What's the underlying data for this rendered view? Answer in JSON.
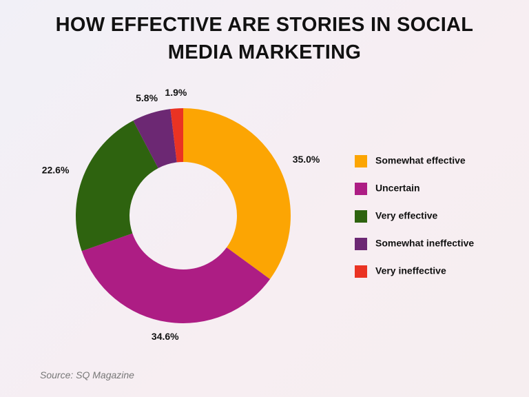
{
  "chart_data": {
    "type": "donut",
    "title": "HOW EFFECTIVE ARE STORIES IN SOCIAL MEDIA MARKETING",
    "categories": [
      "Somewhat effective",
      "Uncertain",
      "Very effective",
      "Somewhat ineffective",
      "Very ineffective"
    ],
    "values": [
      35.0,
      34.6,
      22.6,
      5.8,
      1.9
    ],
    "value_labels": [
      "35.0%",
      "34.6%",
      "22.6%",
      "5.8%",
      "1.9%"
    ],
    "colors": [
      "#fca503",
      "#ad1d84",
      "#2e630f",
      "#6c2873",
      "#ea3323"
    ],
    "source": "Source: SQ Magazine"
  }
}
